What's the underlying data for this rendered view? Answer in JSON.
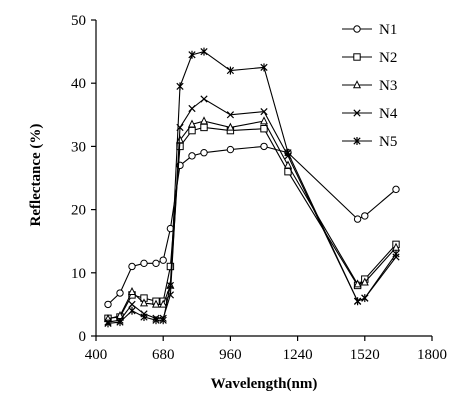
{
  "chart_data": {
    "type": "line",
    "title": "",
    "xlabel": "Wavelength(nm)",
    "ylabel": "Reflectance (%)",
    "xlim": [
      400,
      1800
    ],
    "ylim": [
      0,
      50
    ],
    "xticks": [
      400,
      680,
      960,
      1240,
      1520,
      1800
    ],
    "yticks": [
      0,
      10,
      20,
      30,
      40,
      50
    ],
    "grid": false,
    "legend_position": "top-right",
    "series": [
      {
        "name": "N1",
        "marker": "circle",
        "x": [
          450,
          500,
          550,
          600,
          650,
          680,
          710,
          750,
          800,
          850,
          960,
          1100,
          1200,
          1490,
          1520,
          1650
        ],
        "y": [
          5.0,
          6.8,
          11.0,
          11.5,
          11.5,
          12.0,
          17.0,
          27.0,
          28.5,
          29.0,
          29.5,
          30.0,
          29.0,
          18.5,
          19.0,
          23.2
        ]
      },
      {
        "name": "N2",
        "marker": "square",
        "x": [
          450,
          500,
          550,
          600,
          650,
          680,
          710,
          750,
          800,
          850,
          960,
          1100,
          1200,
          1490,
          1520,
          1650
        ],
        "y": [
          2.8,
          3.0,
          6.5,
          6.0,
          5.5,
          5.5,
          11.0,
          30.0,
          32.5,
          33.0,
          32.5,
          32.8,
          26.0,
          8.0,
          9.0,
          14.5
        ]
      },
      {
        "name": "N3",
        "marker": "triangle",
        "x": [
          450,
          500,
          550,
          600,
          650,
          680,
          710,
          750,
          800,
          850,
          960,
          1100,
          1200,
          1490,
          1520,
          1650
        ],
        "y": [
          2.7,
          3.2,
          7.0,
          5.2,
          5.0,
          5.0,
          8.0,
          31.0,
          33.5,
          34.0,
          33.0,
          34.0,
          27.0,
          8.2,
          8.5,
          14.0
        ]
      },
      {
        "name": "N4",
        "marker": "x",
        "x": [
          450,
          500,
          550,
          600,
          650,
          680,
          710,
          750,
          800,
          850,
          960,
          1100,
          1200,
          1490,
          1520,
          1650
        ],
        "y": [
          2.2,
          2.5,
          5.0,
          3.5,
          2.8,
          2.8,
          6.5,
          33.0,
          36.0,
          37.5,
          35.0,
          35.5,
          28.5,
          5.5,
          6.0,
          12.5
        ]
      },
      {
        "name": "N5",
        "marker": "star",
        "x": [
          450,
          500,
          550,
          600,
          650,
          680,
          710,
          750,
          800,
          850,
          960,
          1100,
          1200,
          1490,
          1520,
          1650
        ],
        "y": [
          2.0,
          2.2,
          4.0,
          3.0,
          2.5,
          2.5,
          8.0,
          39.5,
          44.5,
          45.0,
          42.0,
          42.5,
          29.0,
          5.5,
          6.0,
          13.0
        ]
      }
    ]
  }
}
